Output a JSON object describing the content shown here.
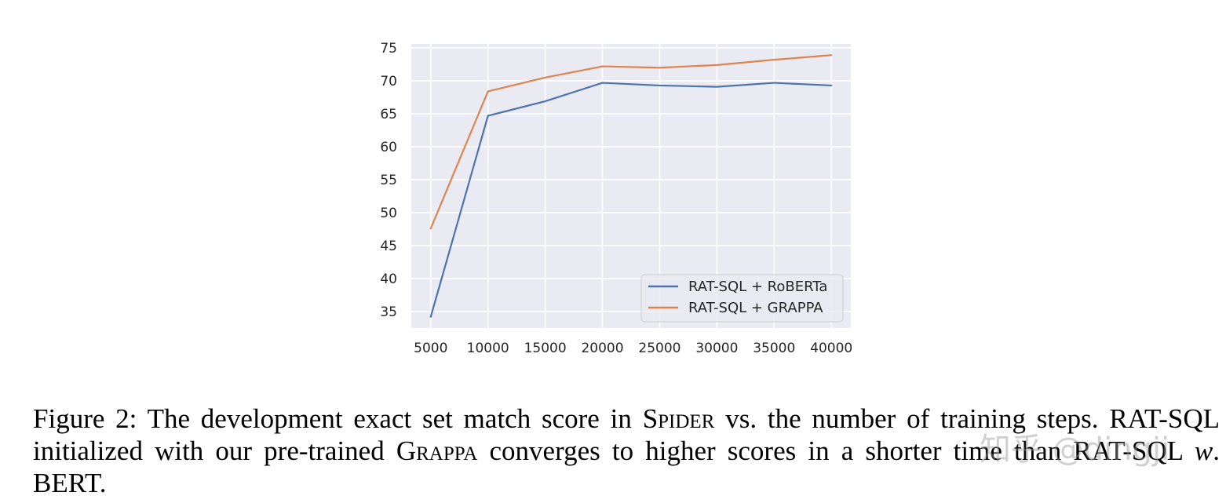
{
  "chart_data": {
    "type": "line",
    "title": "",
    "xlabel": "",
    "ylabel": "",
    "x": [
      5000,
      10000,
      15000,
      20000,
      25000,
      30000,
      35000,
      40000
    ],
    "xticks": [
      "5000",
      "10000",
      "15000",
      "20000",
      "25000",
      "30000",
      "35000",
      "40000"
    ],
    "yticks": [
      "35",
      "40",
      "45",
      "50",
      "55",
      "60",
      "65",
      "70",
      "75"
    ],
    "xlim": [
      3300,
      41700
    ],
    "ylim": [
      32.5,
      75.6
    ],
    "grid": true,
    "legend_position": "bottom-right",
    "series": [
      {
        "name": "RAT-SQL + RoBERTa",
        "color": "#4c72b0",
        "values": [
          34.2,
          64.7,
          66.9,
          69.7,
          69.3,
          69.1,
          69.7,
          69.3
        ]
      },
      {
        "name": "RAT-SQL + GRAPPA",
        "color": "#dd8452",
        "values": [
          47.6,
          68.4,
          70.5,
          72.2,
          72.0,
          72.4,
          73.2,
          73.9
        ]
      }
    ]
  },
  "caption": {
    "label": "Figure 2:",
    "part1": " The development exact set match score in ",
    "spider": "Spider",
    "part2": " vs.  the number of training steps. RAT-SQL initialized with our pre-trained ",
    "grappa": "Grappa",
    "part3": " converges to higher scores in a shorter time than RAT-SQL ",
    "w": "w",
    "part4": ". BERT."
  },
  "watermark": "知乎 @dingji"
}
